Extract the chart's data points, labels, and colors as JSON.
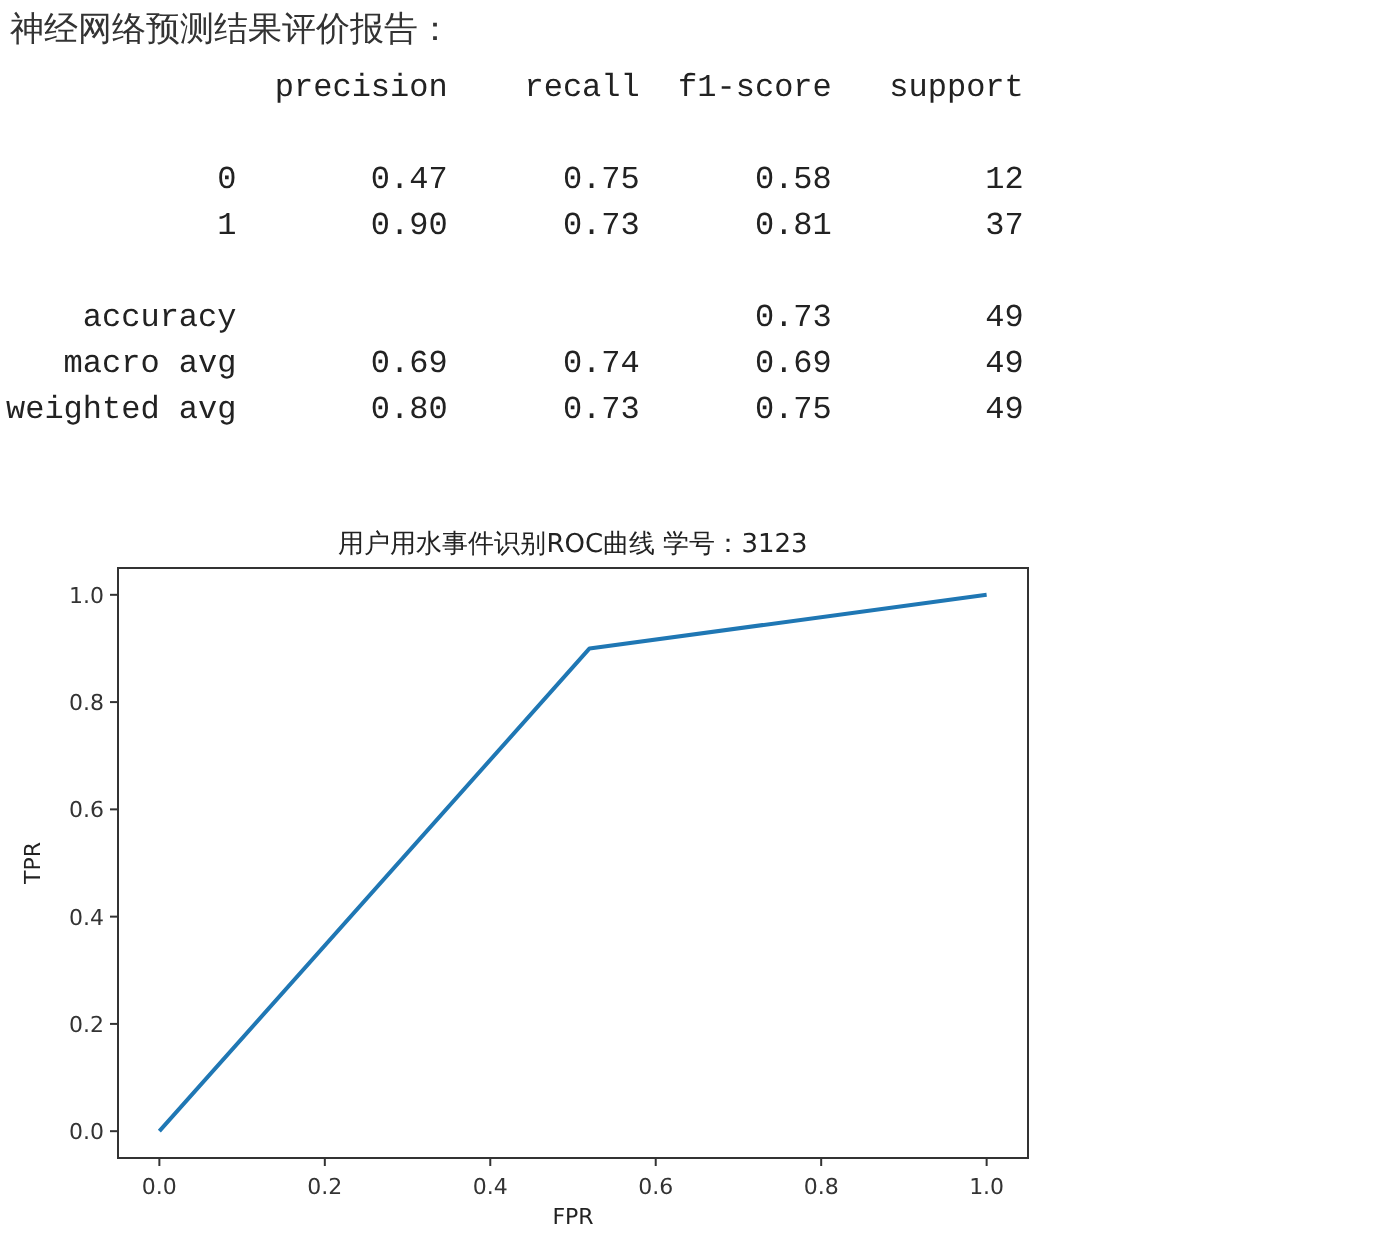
{
  "chart_data": [
    {
      "type": "other",
      "title": "神经网络预测结果评价报告：",
      "annotations": [
        "              precision    recall  f1-score   support",
        "           0       0.47      0.75      0.58        12",
        "           1       0.90      0.73      0.81        37",
        "    accuracy                           0.73        49",
        "   macro avg       0.69      0.74      0.69        49",
        "weighted avg       0.80      0.73      0.75        49"
      ]
    },
    {
      "type": "line",
      "title": "用户用水事件识别ROC曲线 学号：3123",
      "xlabel": "FPR",
      "ylabel": "TPR",
      "x": [
        0,
        0.52,
        1
      ],
      "series": [
        {
          "color": "#1f77b4",
          "values": [
            0,
            0.9,
            1
          ]
        }
      ],
      "xlim": [
        -0.05,
        1.05
      ],
      "ylim": [
        -0.05,
        1.05
      ],
      "xticks": [
        {
          "value": 0,
          "label": "0.0"
        },
        0.2,
        0.4,
        0.6,
        0.8,
        {
          "value": 1,
          "label": "1.0"
        }
      ],
      "yticks": [
        {
          "value": 0,
          "label": "0.0"
        },
        0.2,
        0.4,
        0.6,
        0.8,
        {
          "value": 1,
          "label": "1.0"
        }
      ],
      "grid": false
    }
  ]
}
